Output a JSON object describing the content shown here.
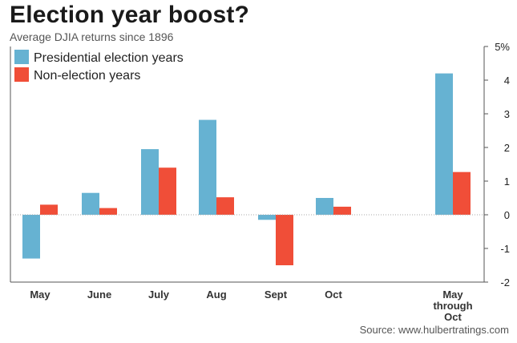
{
  "title": "Election year boost?",
  "subtitle": "Average DJIA returns since 1896",
  "source": "Source: www.hulbertratings.com",
  "colors": {
    "election": "#66b2d2",
    "non_election": "#f04e38",
    "axis": "#555555",
    "grid": "#aaaaaa"
  },
  "chart_data": {
    "type": "bar",
    "title": "Election year boost?",
    "subtitle": "Average DJIA returns since 1896",
    "categories": [
      "May",
      "June",
      "July",
      "Aug",
      "Sept",
      "Oct",
      "May through Oct"
    ],
    "series": [
      {
        "name": "Presidential election years",
        "values": [
          -1.3,
          0.65,
          1.95,
          2.82,
          -0.15,
          0.5,
          4.2
        ]
      },
      {
        "name": "Non-election years",
        "values": [
          0.3,
          0.2,
          1.4,
          0.52,
          -1.5,
          0.24,
          1.27
        ]
      }
    ],
    "ylim": [
      -2,
      5
    ],
    "yticks": [
      "5%",
      "4",
      "3",
      "2",
      "1",
      "0",
      "-1",
      "-2"
    ],
    "ytick_values": [
      5,
      4,
      3,
      2,
      1,
      0,
      -1,
      -2
    ],
    "legend_position": "top-left",
    "grid": false
  }
}
